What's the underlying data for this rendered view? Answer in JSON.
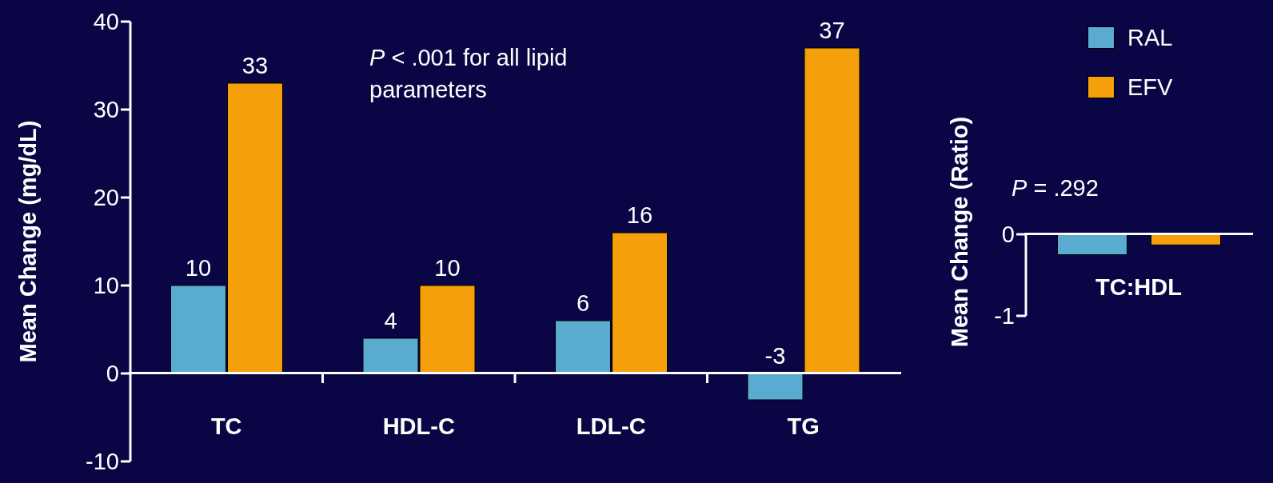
{
  "chart_data": [
    {
      "type": "bar",
      "ylabel": "Mean Change (mg/dL)",
      "categories": [
        "TC",
        "HDL-C",
        "LDL-C",
        "TG"
      ],
      "series": [
        {
          "color": "#5aabd0",
          "values": [
            10,
            4,
            6,
            -3
          ]
        },
        {
          "color": "#f5a00a",
          "values": [
            33,
            10,
            16,
            37
          ]
        }
      ],
      "ylim": [
        -10,
        40
      ],
      "yticks": [
        -10,
        0,
        10,
        20,
        30,
        40
      ],
      "grid": false,
      "data_labels": true,
      "annotations": [
        "P < .001 for all lipid parameters"
      ]
    },
    {
      "type": "bar",
      "ylabel": "Mean Change (Ratio)",
      "categories": [
        "TC:HDL"
      ],
      "series": [
        {
          "name": "RAL",
          "color": "#5aabd0",
          "values": [
            -0.25
          ]
        },
        {
          "name": "EFV",
          "color": "#f5a00a",
          "values": [
            -0.13
          ]
        }
      ],
      "ylim": [
        -1,
        0
      ],
      "yticks": [
        -1,
        0
      ],
      "grid": false,
      "legend": "top",
      "annotations": [
        "P = .292"
      ]
    }
  ]
}
